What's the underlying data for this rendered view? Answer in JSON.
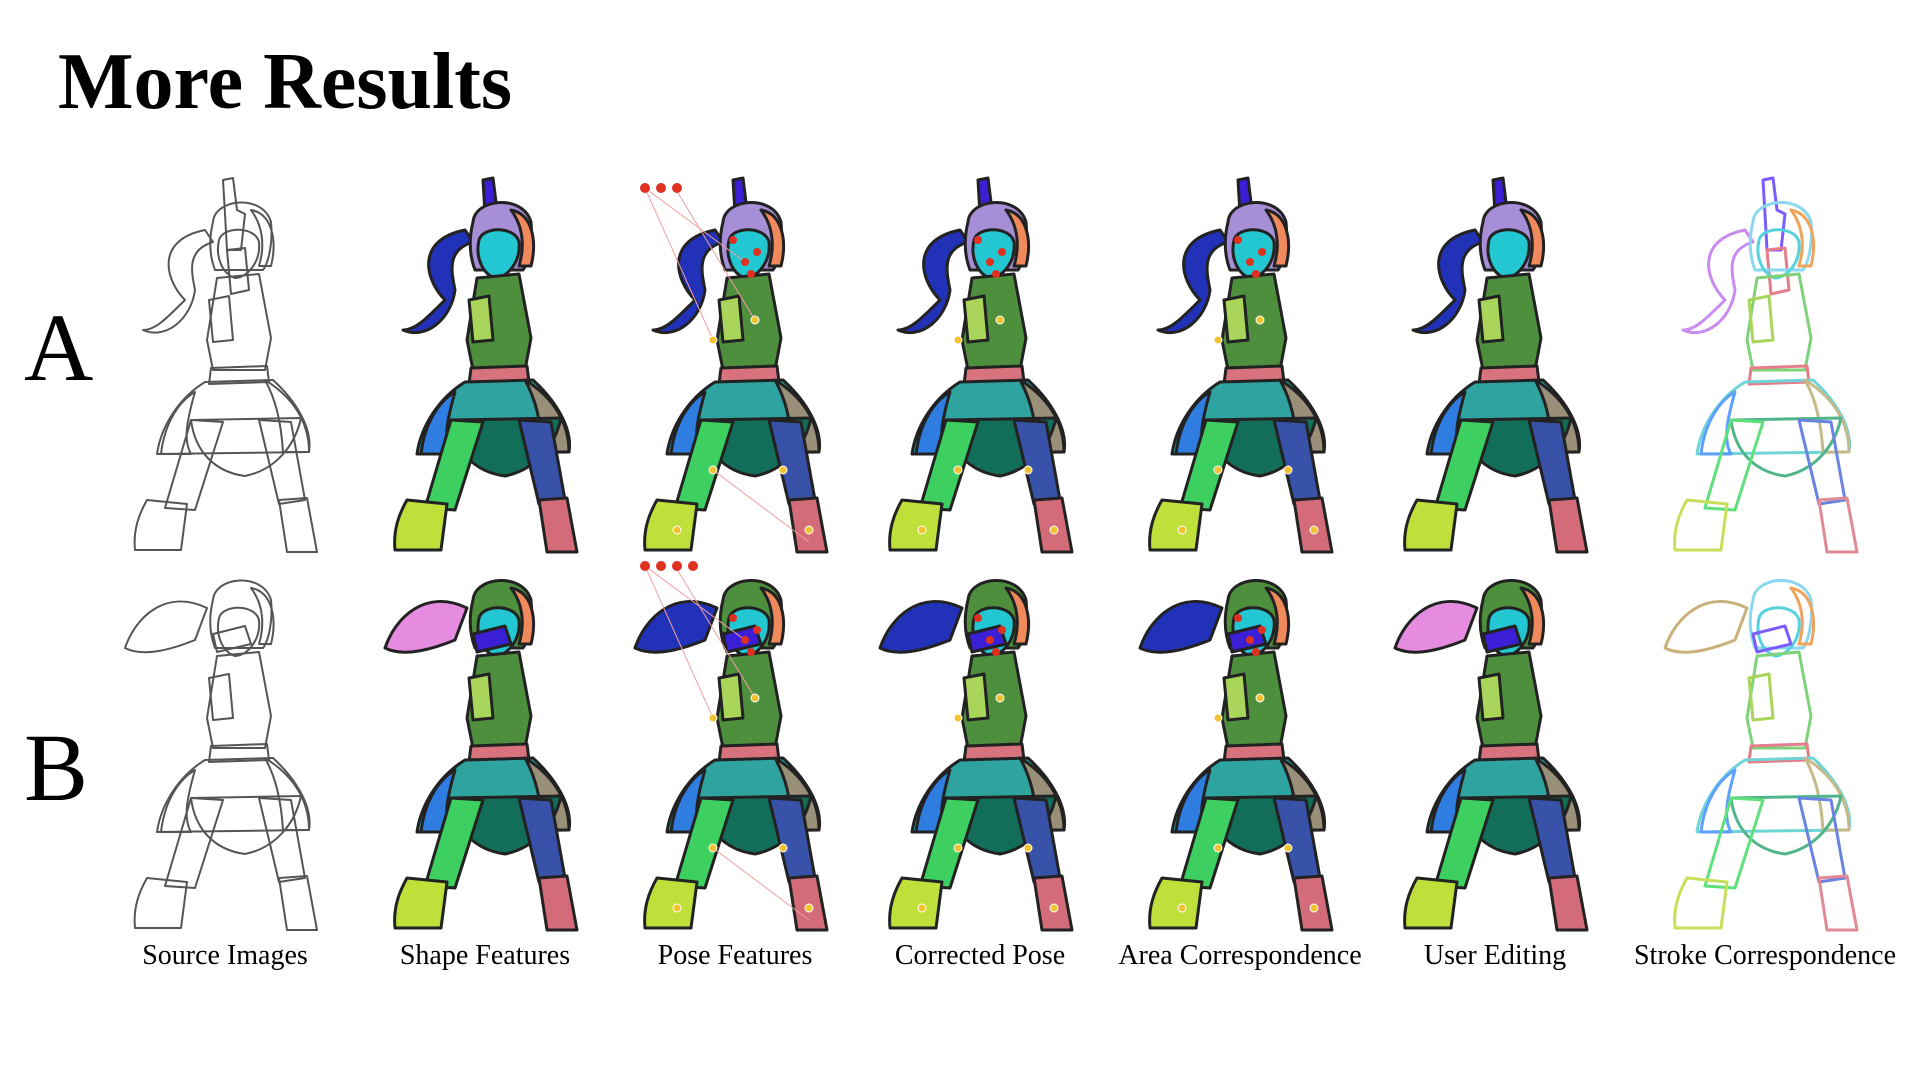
{
  "title": "More Results",
  "rows": [
    {
      "id": "a",
      "label": "A"
    },
    {
      "id": "b",
      "label": "B"
    }
  ],
  "columns": [
    {
      "label": "Source Images",
      "style": "outline"
    },
    {
      "label": "Shape Features",
      "style": "colored"
    },
    {
      "label": "Pose Features",
      "style": "pose"
    },
    {
      "label": "Corrected Pose",
      "style": "corrected"
    },
    {
      "label": "Area Correspondence",
      "style": "area"
    },
    {
      "label": "User Editing",
      "style": "colored"
    },
    {
      "label": "Stroke Correspondence",
      "style": "stroke"
    }
  ],
  "colors": {
    "arm": "#3b1fd6",
    "head": "#22c7d2",
    "hair_a": "#a78fd8",
    "hair_b": "#f08a5d",
    "ponytail_a": "#2232b8",
    "ponytail_b": "#e58ce0",
    "torso": "#4e8f3d",
    "torso_light": "#a9d65a",
    "belt": "#d8737e",
    "skirt": "#2ea3a0",
    "skirt_dark": "#136e59",
    "skirt_side": "#9a8f78",
    "skirt_blue": "#2f7de0",
    "leg_left": "#3dcf5f",
    "leg_right": "#3752a8",
    "boot_left": "#bfe03a",
    "boot_right": "#d46b78",
    "pose_dot": "#e03020",
    "joint_dot": "#f1c232"
  }
}
